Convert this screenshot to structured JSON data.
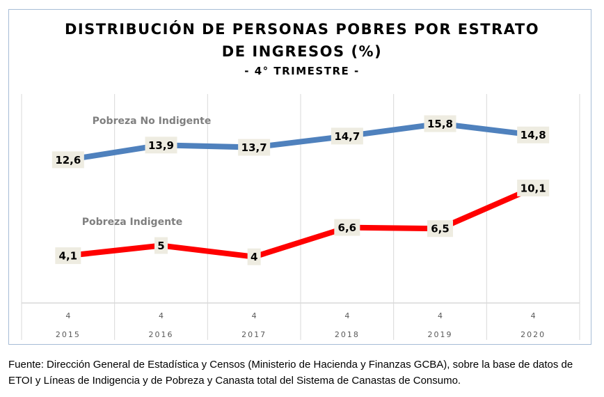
{
  "chart_data": {
    "type": "line",
    "title": "DISTRIBUCIÓN DE PERSONAS POBRES POR ESTRATO",
    "title_line2": "DE INGRESOS (%)",
    "subtitle": "- 4° TRIMESTRE -",
    "xlabel": "",
    "ylabel": "",
    "ylim": [
      0,
      18
    ],
    "grid": "vertical",
    "categories": [
      {
        "quarter": "4",
        "year": "2015"
      },
      {
        "quarter": "4",
        "year": "2016"
      },
      {
        "quarter": "4",
        "year": "2017"
      },
      {
        "quarter": "4",
        "year": "2018"
      },
      {
        "quarter": "4",
        "year": "2019"
      },
      {
        "quarter": "4",
        "year": "2020"
      }
    ],
    "series": [
      {
        "name": "Pobreza No Indigente",
        "color": "#4f81bd",
        "values": [
          12.6,
          13.9,
          13.7,
          14.7,
          15.8,
          14.8
        ],
        "labels": [
          "12,6",
          "13,9",
          "13,7",
          "14,7",
          "15,8",
          "14,8"
        ]
      },
      {
        "name": "Pobreza Indigente",
        "color": "#ff0000",
        "values": [
          4.1,
          5,
          4,
          6.6,
          6.5,
          10.1
        ],
        "labels": [
          "4,1",
          "5",
          "4",
          "6,6",
          "6,5",
          "10,1"
        ]
      }
    ]
  },
  "source": {
    "line1": "Fuente: Dirección General de Estadística y Censos (Ministerio de Hacienda y Finanzas GCBA), sobre la base de datos de",
    "line2": "ETOI y Líneas de Indigencia y de Pobreza y Canasta total del Sistema de Canastas de Consumo."
  },
  "colors": {
    "label_box": "#eeece1",
    "grid": "#d9d9d9",
    "series_label_text": "#7f7f7f",
    "axis_text": "#595959",
    "frame": "#a6bcd6"
  }
}
